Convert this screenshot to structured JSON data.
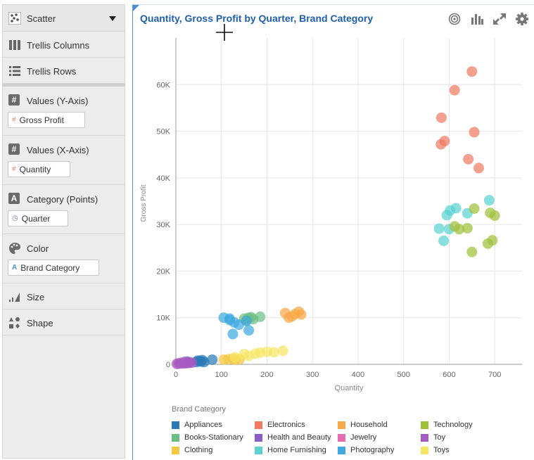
{
  "panel": {
    "chart_type": "Scatter",
    "trellis_columns": "Trellis Columns",
    "trellis_rows": "Trellis Rows",
    "values_y_label": "Values (Y-Axis)",
    "values_y_chip": "Gross Profit",
    "values_x_label": "Values (X-Axis)",
    "values_x_chip": "Quantity",
    "category_label": "Category (Points)",
    "category_chip": "Quarter",
    "color_label": "Color",
    "color_chip": "Brand Category",
    "size_label": "Size",
    "shape_label": "Shape"
  },
  "chart_data": {
    "type": "scatter",
    "title": "Quantity, Gross Profit by Quarter, Brand Category",
    "xlabel": "Quantity",
    "ylabel": "Gross Profit",
    "xlim": [
      0,
      760
    ],
    "ylim": [
      0,
      70000
    ],
    "x_ticks": [
      0,
      100,
      200,
      300,
      400,
      500,
      600,
      700
    ],
    "y_ticks": [
      0,
      10000,
      20000,
      30000,
      40000,
      50000,
      60000
    ],
    "x_tick_labels": [
      "0",
      "100",
      "200",
      "300",
      "400",
      "500",
      "600",
      "700"
    ],
    "y_tick_labels": [
      "0",
      "10K",
      "20K",
      "30K",
      "40K",
      "50K",
      "60K"
    ],
    "grid": true,
    "legend_title": "Brand Category",
    "legend_position": "bottom",
    "series": [
      {
        "name": "Appliances",
        "color": "#2b7bb9",
        "points": [
          [
            45,
            500
          ],
          [
            52,
            700
          ],
          [
            58,
            900
          ],
          [
            62,
            500
          ],
          [
            80,
            1000
          ],
          [
            55,
            600
          ],
          [
            48,
            800
          ]
        ]
      },
      {
        "name": "Books-Stationary",
        "color": "#6cbf84",
        "points": [
          [
            150,
            9800
          ],
          [
            160,
            10000
          ],
          [
            165,
            10100
          ],
          [
            170,
            9700
          ],
          [
            185,
            10200
          ],
          [
            155,
            9500
          ]
        ]
      },
      {
        "name": "Clothing",
        "color": "#f5c842",
        "points": [
          [
            105,
            1000
          ],
          [
            115,
            1100
          ],
          [
            125,
            1200
          ],
          [
            130,
            1000
          ],
          [
            140,
            1100
          ]
        ]
      },
      {
        "name": "Electronics",
        "color": "#ee7b63",
        "points": [
          [
            650,
            62800
          ],
          [
            612,
            58800
          ],
          [
            583,
            52900
          ],
          [
            590,
            47900
          ],
          [
            582,
            47200
          ],
          [
            655,
            49800
          ],
          [
            642,
            44000
          ],
          [
            665,
            42100
          ]
        ]
      },
      {
        "name": "Health and Beauty",
        "color": "#8a5dc9",
        "points": [
          [
            10,
            300
          ],
          [
            18,
            500
          ],
          [
            25,
            600
          ],
          [
            30,
            400
          ]
        ]
      },
      {
        "name": "Home Furnishing",
        "color": "#5cd1d1",
        "points": [
          [
            578,
            29100
          ],
          [
            595,
            32000
          ],
          [
            602,
            33000
          ],
          [
            615,
            33500
          ],
          [
            588,
            26500
          ],
          [
            600,
            29000
          ],
          [
            640,
            32400
          ],
          [
            688,
            35200
          ]
        ]
      },
      {
        "name": "Household",
        "color": "#f7a94a",
        "points": [
          [
            240,
            11000
          ],
          [
            248,
            10000
          ],
          [
            255,
            10300
          ],
          [
            262,
            10800
          ],
          [
            270,
            11300
          ],
          [
            275,
            10700
          ]
        ]
      },
      {
        "name": "Jewelry",
        "color": "#e66cb0",
        "points": [
          [
            5,
            200
          ],
          [
            12,
            300
          ],
          [
            20,
            250
          ]
        ]
      },
      {
        "name": "Photography",
        "color": "#3fa9e0",
        "points": [
          [
            105,
            10000
          ],
          [
            118,
            9800
          ],
          [
            128,
            9000
          ],
          [
            138,
            8500
          ],
          [
            155,
            9300
          ],
          [
            160,
            7300
          ],
          [
            125,
            6500
          ],
          [
            118,
            9500
          ]
        ]
      },
      {
        "name": "Technology",
        "color": "#9fc03b",
        "points": [
          [
            612,
            29600
          ],
          [
            622,
            29000
          ],
          [
            640,
            29200
          ],
          [
            655,
            33400
          ],
          [
            700,
            31900
          ],
          [
            690,
            32500
          ],
          [
            685,
            25900
          ],
          [
            695,
            26600
          ],
          [
            650,
            24100
          ]
        ]
      },
      {
        "name": "Toy",
        "color": "#a55cc2",
        "points": [
          [
            2,
            100
          ],
          [
            8,
            150
          ],
          [
            15,
            200
          ],
          [
            22,
            250
          ],
          [
            28,
            300
          ],
          [
            35,
            350
          ]
        ]
      },
      {
        "name": "Toys",
        "color": "#f5e664",
        "points": [
          [
            175,
            2300
          ],
          [
            185,
            2500
          ],
          [
            200,
            2700
          ],
          [
            215,
            2600
          ],
          [
            235,
            2900
          ],
          [
            150,
            2200
          ],
          [
            160,
            1800
          ],
          [
            130,
            1500
          ]
        ]
      }
    ]
  },
  "legend": {
    "title": "Brand Category",
    "items": [
      {
        "name": "Appliances",
        "color": "#2b7bb9"
      },
      {
        "name": "Electronics",
        "color": "#ee7b63"
      },
      {
        "name": "Household",
        "color": "#f7a94a"
      },
      {
        "name": "Technology",
        "color": "#9fc03b"
      },
      {
        "name": "Books-Stationary",
        "color": "#6cbf84"
      },
      {
        "name": "Health and Beauty",
        "color": "#8a5dc9"
      },
      {
        "name": "Jewelry",
        "color": "#e66cb0"
      },
      {
        "name": "Toy",
        "color": "#a55cc2"
      },
      {
        "name": "Clothing",
        "color": "#f5c842"
      },
      {
        "name": "Home Furnishing",
        "color": "#5cd1d1"
      },
      {
        "name": "Photography",
        "color": "#3fa9e0"
      },
      {
        "name": "Toys",
        "color": "#f5e664"
      }
    ]
  },
  "icons": {
    "toolbar": [
      "target-icon",
      "bar-chart-icon",
      "expand-icon",
      "gear-icon"
    ]
  }
}
